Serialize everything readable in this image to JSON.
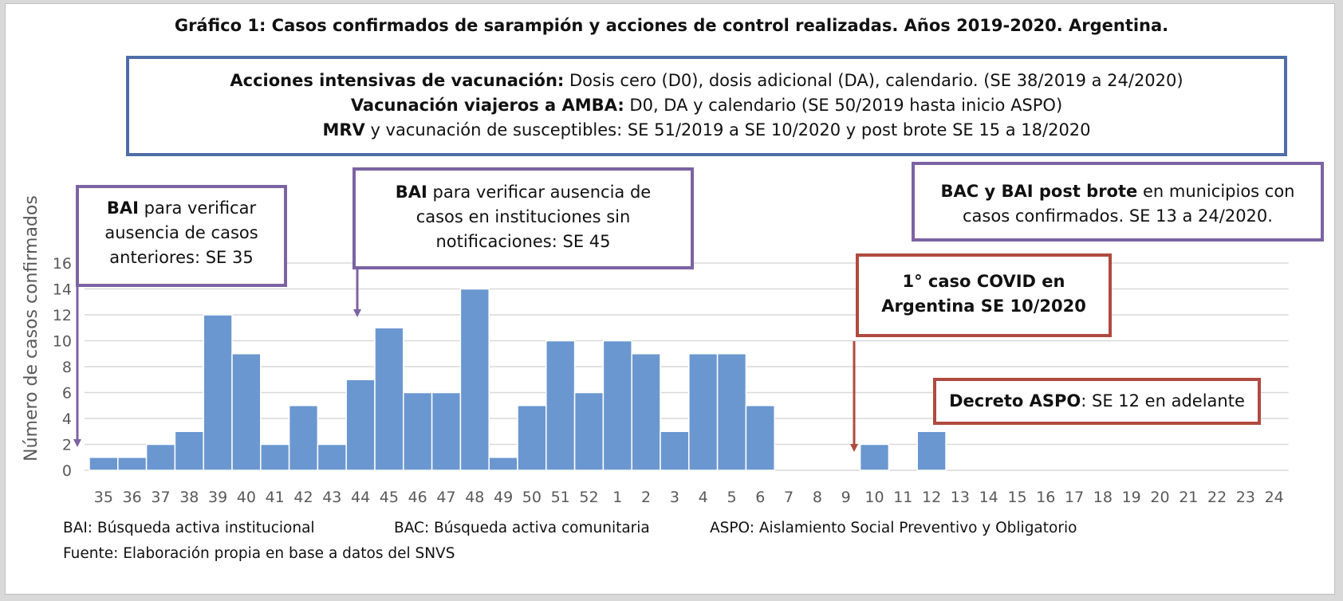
{
  "title": "Gráfico 1: Casos confirmados de sarampión y acciones de control realizadas. Años 2019-2020. Argentina.",
  "top_box": {
    "line1_bold": "Acciones intensivas de vacunación:",
    "line1_rest": " Dosis cero (D0),  dosis adicional (DA), calendario. (SE 38/2019 a 24/2020)",
    "line2_bold": "Vacunación viajeros a AMBA:",
    "line2_rest": " D0, DA y calendario (SE 50/2019  hasta inicio ASPO)",
    "line3_bold": "MRV",
    "line3_rest": " y vacunación de susceptibles: SE 51/2019 a SE 10/2020 y post brote SE 15 a 18/2020"
  },
  "annotations": {
    "bai35": {
      "bold": "BAI",
      "line1_rest": "  para verificar",
      "line2": "ausencia de casos",
      "line3": "anteriores: SE 35"
    },
    "bai45": {
      "bold": "BAI",
      "line1_rest": "  para verificar ausencia de",
      "line2": "casos en instituciones sin",
      "line3": "notificaciones: SE 45"
    },
    "bac": {
      "bold": "BAC y BAI post brote",
      "line1_rest": " en municipios con",
      "line2": "casos confirmados. SE 13 a 24/2020."
    },
    "covid": {
      "line1": "1° caso COVID en",
      "line2": "Argentina SE 10/2020"
    },
    "aspo": {
      "bold": "Decreto ASPO",
      "rest": ": SE 12 en adelante"
    }
  },
  "footer": {
    "bai": "BAI: Búsqueda activa institucional",
    "bac": "BAC: Búsqueda activa comunitaria",
    "aspo": "ASPO: Aislamiento Social Preventivo y Obligatorio",
    "source": "Fuente: Elaboración propia en base a datos del SNVS"
  },
  "colors": {
    "bar": "#6b97d0",
    "bar_edge": "#4a7bbf",
    "blue_box": "#4f6ea8",
    "purple": "#7c63a3",
    "red": "#b04a40",
    "grid": "#d9d9d9"
  },
  "chart_data": {
    "type": "bar",
    "ylabel": "Número de casos confirmados",
    "xlabel": "",
    "ylim": [
      0,
      16
    ],
    "yticks": [
      0,
      2,
      4,
      6,
      8,
      10,
      12,
      14,
      16
    ],
    "grid": true,
    "categories": [
      "35",
      "36",
      "37",
      "38",
      "39",
      "40",
      "41",
      "42",
      "43",
      "44",
      "45",
      "46",
      "47",
      "48",
      "49",
      "50",
      "51",
      "52",
      "1",
      "2",
      "3",
      "4",
      "5",
      "6",
      "7",
      "8",
      "9",
      "10",
      "11",
      "12",
      "13",
      "14",
      "15",
      "16",
      "17",
      "18",
      "19",
      "20",
      "21",
      "22",
      "23",
      "24"
    ],
    "values": [
      1,
      1,
      2,
      3,
      12,
      9,
      2,
      5,
      2,
      7,
      11,
      6,
      6,
      14,
      1,
      5,
      10,
      6,
      10,
      9,
      3,
      9,
      9,
      5,
      0,
      0,
      0,
      2,
      0,
      3,
      0,
      0,
      0,
      0,
      0,
      0,
      0,
      0,
      0,
      0,
      0,
      0
    ]
  }
}
